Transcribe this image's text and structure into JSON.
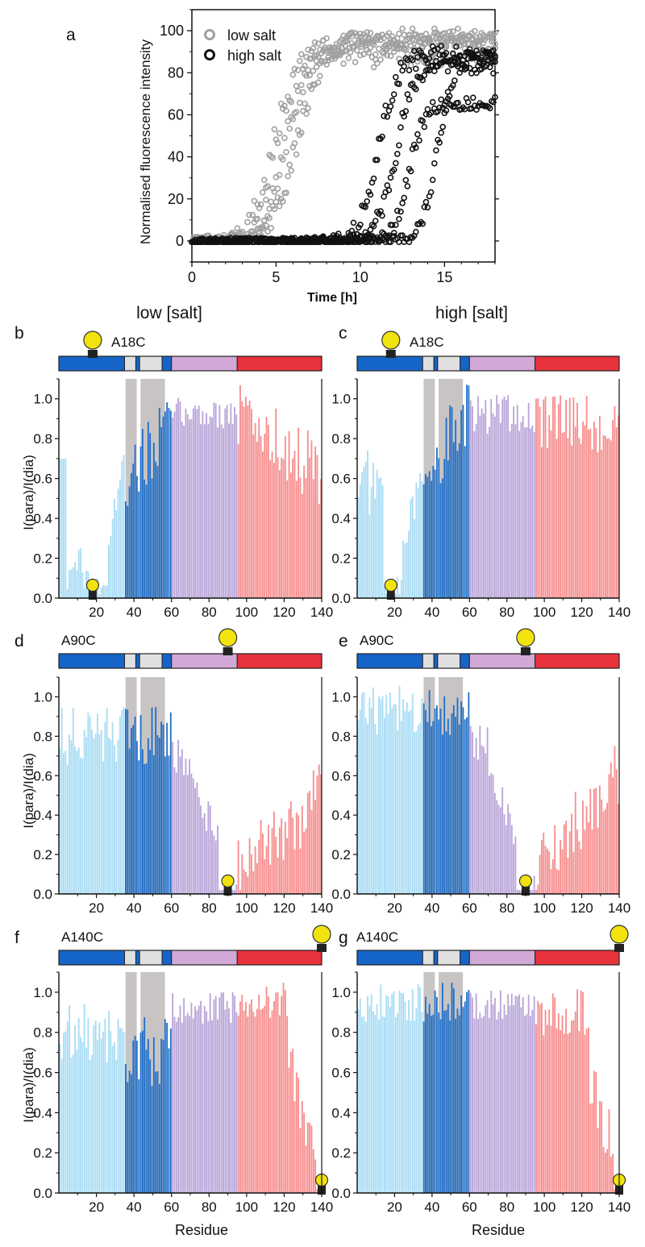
{
  "colors": {
    "low_salt": "#a0a0a0",
    "high_salt": "#111111",
    "region_n": "#1565c8",
    "region_nac": "#d2a8d6",
    "region_c": "#e8323c",
    "region_box": "#e0e0e0",
    "bar_light_blue": "#a8dcf4",
    "bar_dark_blue": "#1f6fc8",
    "bar_purple": "#b8a4d8",
    "bar_red": "#f78c8c",
    "grey_shade": "#c9c4c4",
    "label_dot": "#f2e20e",
    "label_stem": "#222222"
  },
  "column_headers": {
    "left": "low [salt]",
    "right": "high [salt]"
  },
  "chart_data": [
    {
      "id": "a",
      "panel_label": "a",
      "type": "scatter",
      "title": "",
      "xlabel": "Time [h]",
      "ylabel": "Normalised fluorescence intensity",
      "xlim": [
        0,
        18
      ],
      "ylim": [
        -10,
        110
      ],
      "xticks": [
        0,
        5,
        10,
        15
      ],
      "yticks": [
        0,
        20,
        40,
        60,
        80,
        100
      ],
      "legend_position": "top-left",
      "legend": [
        "low salt",
        "high salt"
      ],
      "series": [
        {
          "name": "low salt",
          "color_key": "low_salt",
          "curves": [
            {
              "t50": 4.9,
              "k": 0.65,
              "plateau": 90,
              "rise": 1.3
            },
            {
              "t50": 5.6,
              "k": 0.7,
              "plateau": 94,
              "rise": 0.9
            },
            {
              "t50": 6.3,
              "k": 0.75,
              "plateau": 97,
              "rise": 0.7
            }
          ]
        },
        {
          "name": "high salt",
          "color_key": "high_salt",
          "curves": [
            {
              "t50": 11.1,
              "k": 0.55,
              "plateau": 88,
              "rise": 0.6
            },
            {
              "t50": 12.1,
              "k": 0.55,
              "plateau": 84,
              "rise": 0.5
            },
            {
              "t50": 12.9,
              "k": 0.45,
              "plateau": 65,
              "rise": 0.3
            },
            {
              "t50": 14.6,
              "k": 0.45,
              "plateau": 88,
              "rise": 0.3
            }
          ]
        }
      ]
    },
    {
      "id": "b",
      "panel_label": "b",
      "type": "bar",
      "label_site": "A18C",
      "label_residue": 18,
      "xlabel": "",
      "ylabel": "I(para)/I(dia)",
      "xlim": [
        0,
        140
      ],
      "ylim": [
        0,
        1.1
      ],
      "xticks": [
        20,
        40,
        60,
        80,
        100,
        120,
        140
      ],
      "yticks": [
        0.0,
        0.2,
        0.4,
        0.6,
        0.8,
        1.0
      ],
      "profile": "n_low",
      "shaded_residues": [
        [
          36,
          41
        ],
        [
          44,
          56
        ]
      ]
    },
    {
      "id": "c",
      "panel_label": "c",
      "type": "bar",
      "label_site": "A18C",
      "label_residue": 18,
      "xlabel": "",
      "ylabel": "",
      "xlim": [
        0,
        140
      ],
      "ylim": [
        0,
        1.1
      ],
      "xticks": [
        20,
        40,
        60,
        80,
        100,
        120,
        140
      ],
      "yticks": [
        0.0,
        0.2,
        0.4,
        0.6,
        0.8,
        1.0
      ],
      "profile": "n_high",
      "shaded_residues": [
        [
          36,
          41
        ],
        [
          44,
          56
        ]
      ]
    },
    {
      "id": "d",
      "panel_label": "d",
      "type": "bar",
      "label_site": "A90C",
      "label_residue": 90,
      "xlabel": "",
      "ylabel": "I(para)/I(dia)",
      "xlim": [
        0,
        140
      ],
      "ylim": [
        0,
        1.1
      ],
      "xticks": [
        20,
        40,
        60,
        80,
        100,
        120,
        140
      ],
      "yticks": [
        0.0,
        0.2,
        0.4,
        0.6,
        0.8,
        1.0
      ],
      "profile": "mid_low",
      "shaded_residues": [
        [
          36,
          41
        ],
        [
          44,
          56
        ]
      ]
    },
    {
      "id": "e",
      "panel_label": "e",
      "type": "bar",
      "label_site": "A90C",
      "label_residue": 90,
      "xlabel": "",
      "ylabel": "",
      "xlim": [
        0,
        140
      ],
      "ylim": [
        0,
        1.1
      ],
      "xticks": [
        20,
        40,
        60,
        80,
        100,
        120,
        140
      ],
      "yticks": [
        0.0,
        0.2,
        0.4,
        0.6,
        0.8,
        1.0
      ],
      "profile": "mid_high",
      "shaded_residues": [
        [
          36,
          41
        ],
        [
          44,
          56
        ]
      ]
    },
    {
      "id": "f",
      "panel_label": "f",
      "type": "bar",
      "label_site": "A140C",
      "label_residue": 140,
      "xlabel": "Residue",
      "ylabel": "I(para)/I(dia)",
      "xlim": [
        0,
        140
      ],
      "ylim": [
        0,
        1.1
      ],
      "xticks": [
        20,
        40,
        60,
        80,
        100,
        120,
        140
      ],
      "yticks": [
        0.0,
        0.2,
        0.4,
        0.6,
        0.8,
        1.0
      ],
      "profile": "c_low",
      "shaded_residues": [
        [
          36,
          41
        ],
        [
          44,
          56
        ]
      ]
    },
    {
      "id": "g",
      "panel_label": "g",
      "type": "bar",
      "label_site": "A140C",
      "label_residue": 140,
      "xlabel": "Residue",
      "ylabel": "",
      "xlim": [
        0,
        140
      ],
      "ylim": [
        0,
        1.1
      ],
      "xticks": [
        20,
        40,
        60,
        80,
        100,
        120,
        140
      ],
      "yticks": [
        0.0,
        0.2,
        0.4,
        0.6,
        0.8,
        1.0
      ],
      "profile": "c_high",
      "shaded_residues": [
        [
          36,
          41
        ],
        [
          44,
          56
        ]
      ]
    }
  ],
  "domain_map": {
    "residues": 140,
    "segments": [
      {
        "start": 1,
        "end": 35,
        "color_key": "region_n"
      },
      {
        "start": 36,
        "end": 41,
        "color_key": "region_box"
      },
      {
        "start": 42,
        "end": 43,
        "color_key": "region_n"
      },
      {
        "start": 44,
        "end": 55,
        "color_key": "region_box"
      },
      {
        "start": 56,
        "end": 60,
        "color_key": "region_n"
      },
      {
        "start": 61,
        "end": 95,
        "color_key": "region_nac"
      },
      {
        "start": 96,
        "end": 140,
        "color_key": "region_c"
      }
    ]
  },
  "bar_regions": [
    {
      "start": 1,
      "end": 35,
      "color_key": "bar_light_blue"
    },
    {
      "start": 36,
      "end": 60,
      "color_key": "bar_dark_blue"
    },
    {
      "start": 61,
      "end": 95,
      "color_key": "bar_purple"
    },
    {
      "start": 96,
      "end": 140,
      "color_key": "bar_red"
    }
  ]
}
